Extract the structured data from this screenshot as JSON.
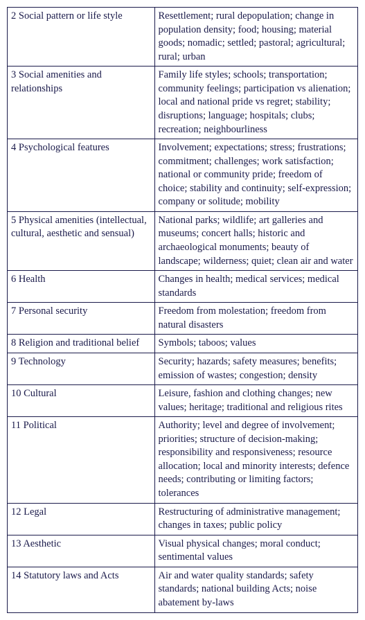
{
  "table": {
    "rows": [
      {
        "num": "2",
        "category": "Social pattern or life style",
        "description": "Resettlement; rural depopulation; change in population density; food; housing; material goods; nomadic; settled; pastoral; agricultural; rural; urban"
      },
      {
        "num": "3",
        "category": "Social amenities and relationships",
        "description": "Family life styles; schools; transportation; community feelings; participation vs alienation; local and national pride vs regret; stability; disruptions; language; hospitals; clubs; recreation; neighbourliness"
      },
      {
        "num": "4",
        "category": "Psychological features",
        "description": "Involvement; expectations; stress; frustrations; commitment; challenges; work satisfaction; national or community pride; freedom of choice; stability and continuity; self-expression; company or solitude; mobility"
      },
      {
        "num": "5",
        "category": "Physical amenities (intellectual, cultural, aesthetic and sensual)",
        "description": "National parks; wildlife; art galleries and museums; concert halls; historic and archaeological monuments; beauty of landscape; wilderness; quiet; clean air and water"
      },
      {
        "num": "6",
        "category": "Health",
        "description": "Changes in health; medical services; medical standards"
      },
      {
        "num": "7",
        "category": "Personal security",
        "description": "Freedom from molestation; freedom from natural disasters"
      },
      {
        "num": "8",
        "category": "Religion and traditional belief",
        "description": "Symbols; taboos; values"
      },
      {
        "num": "9",
        "category": "Technology",
        "description": "Security; hazards; safety measures; benefits; emission of wastes; congestion; density"
      },
      {
        "num": "10",
        "category": "Cultural",
        "description": "Leisure, fashion and clothing changes; new values; heritage; traditional and religious rites"
      },
      {
        "num": "11",
        "category": "Political",
        "description": "Authority; level and degree of involvement; priorities; structure of decision-making; responsibility and responsiveness; resource allocation; local and minority interests; defence needs; contributing or limiting factors; tolerances"
      },
      {
        "num": "12",
        "category": "Legal",
        "description": "Restructuring of administrative management; changes in taxes; public policy"
      },
      {
        "num": "13",
        "category": "Aesthetic",
        "description": "Visual physical changes; moral conduct; sentimental values"
      },
      {
        "num": "14",
        "category": "Statutory laws and Acts",
        "description": "Air and water quality standards; safety standards; national building Acts; noise abatement by-laws"
      }
    ]
  },
  "style": {
    "text_color": "#1a1a4a",
    "border_color": "#1a1a4a",
    "background_color": "#ffffff",
    "font_family": "Times New Roman",
    "font_size_pt": 11,
    "left_col_width_pct": 42,
    "right_col_width_pct": 58
  }
}
